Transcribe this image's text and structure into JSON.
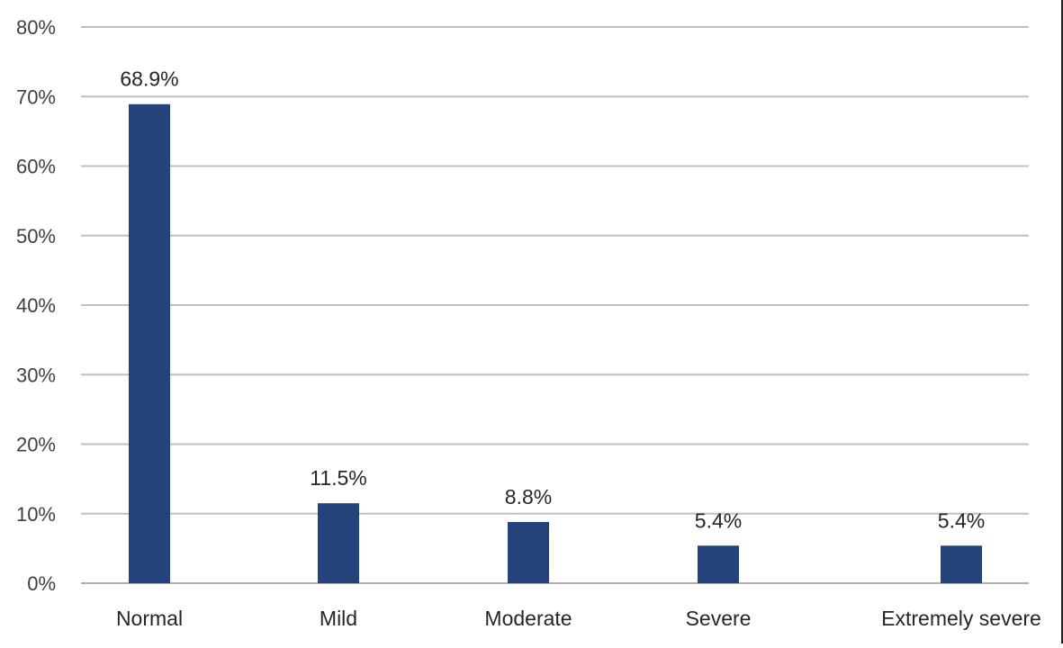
{
  "chart_data": {
    "type": "bar",
    "title": "",
    "xlabel": "",
    "ylabel": "",
    "categories": [
      "Normal",
      "Mild",
      "Moderate",
      "Severe",
      "Extremely severe"
    ],
    "values": [
      68.9,
      11.5,
      8.8,
      5.4,
      5.4
    ],
    "data_labels": [
      "68.9%",
      "11.5%",
      "8.8%",
      "5.4%",
      "5.4%"
    ],
    "ylim": [
      0,
      80
    ],
    "yticks": [
      0,
      10,
      20,
      30,
      40,
      50,
      60,
      70,
      80
    ],
    "ytick_labels": [
      "0%",
      "10%",
      "20%",
      "30%",
      "40%",
      "50%",
      "60%",
      "70%",
      "80%"
    ],
    "grid": true,
    "legend": "none",
    "bar_color": "#23437a"
  }
}
